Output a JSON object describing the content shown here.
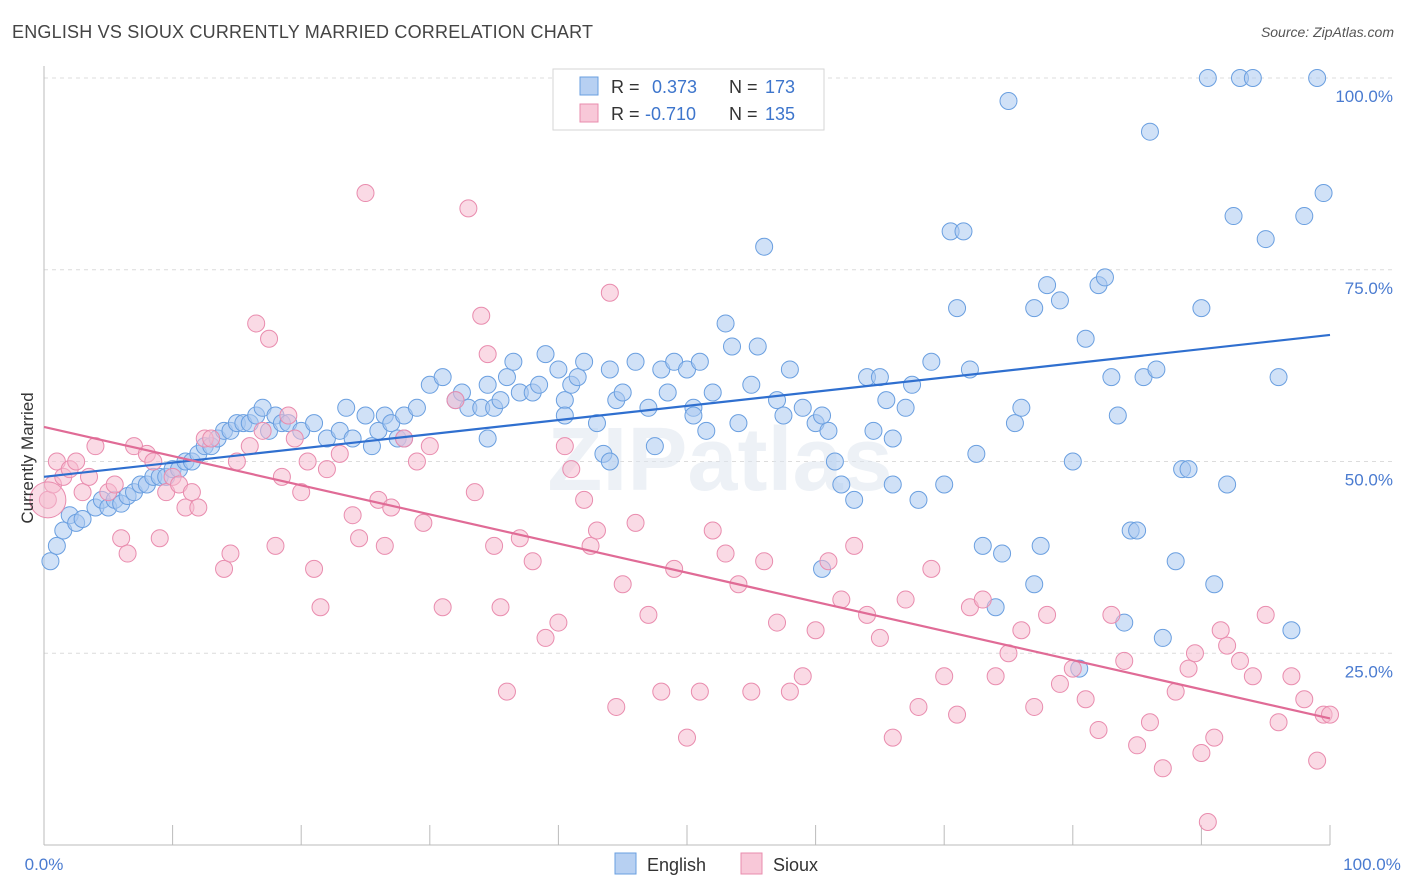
{
  "title": "ENGLISH VS SIOUX CURRENTLY MARRIED CORRELATION CHART",
  "source": "Source: ZipAtlas.com",
  "watermark": "ZIPatlas",
  "chart_data": {
    "type": "scatter",
    "xlabel": "",
    "ylabel": "Currently Married",
    "xlim": [
      0,
      100
    ],
    "ylim": [
      0,
      100
    ],
    "x_tick_labels": [
      "0.0%",
      "100.0%"
    ],
    "y_tick_labels": [
      "25.0%",
      "50.0%",
      "75.0%",
      "100.0%"
    ],
    "y_ticks": [
      25,
      50,
      75,
      100
    ],
    "grid": true,
    "legend_position": "top-center",
    "series": [
      {
        "name": "English",
        "color": "#6a9fe0",
        "fill": "#a9c8f0",
        "line_color": "#2f6fcf",
        "R": "0.373",
        "N": "173",
        "trend": {
          "x0": 0,
          "y0": 48.0,
          "x1": 100,
          "y1": 66.5
        },
        "points": [
          [
            0.5,
            37
          ],
          [
            1,
            39
          ],
          [
            1.5,
            41
          ],
          [
            2,
            43
          ],
          [
            2.5,
            42
          ],
          [
            3,
            42.5
          ],
          [
            4,
            44
          ],
          [
            4.5,
            45
          ],
          [
            5,
            44
          ],
          [
            5.5,
            45
          ],
          [
            6,
            44.5
          ],
          [
            6.5,
            45.5
          ],
          [
            7,
            46
          ],
          [
            7.5,
            47
          ],
          [
            8,
            47
          ],
          [
            8.5,
            48
          ],
          [
            9,
            48
          ],
          [
            9.5,
            48
          ],
          [
            10,
            49
          ],
          [
            10.5,
            49
          ],
          [
            11,
            50
          ],
          [
            11.5,
            50
          ],
          [
            12,
            51
          ],
          [
            12.5,
            52
          ],
          [
            13,
            52
          ],
          [
            13.5,
            53
          ],
          [
            14,
            54
          ],
          [
            14.5,
            54
          ],
          [
            15,
            55
          ],
          [
            15.5,
            55
          ],
          [
            16,
            55
          ],
          [
            16.5,
            56
          ],
          [
            17,
            57
          ],
          [
            17.5,
            54
          ],
          [
            18,
            56
          ],
          [
            18.5,
            55
          ],
          [
            19,
            55
          ],
          [
            20,
            54
          ],
          [
            21,
            55
          ],
          [
            22,
            53
          ],
          [
            23,
            54
          ],
          [
            23.5,
            57
          ],
          [
            24,
            53
          ],
          [
            25,
            56
          ],
          [
            25.5,
            52
          ],
          [
            26,
            54
          ],
          [
            26.5,
            56
          ],
          [
            27,
            55
          ],
          [
            27.5,
            53
          ],
          [
            28,
            56
          ],
          [
            29,
            57
          ],
          [
            30,
            60
          ],
          [
            31,
            61
          ],
          [
            32,
            58
          ],
          [
            32.5,
            59
          ],
          [
            33,
            57
          ],
          [
            34,
            57
          ],
          [
            34.5,
            60
          ],
          [
            35,
            57
          ],
          [
            35.5,
            58
          ],
          [
            36,
            61
          ],
          [
            36.5,
            63
          ],
          [
            37,
            59
          ],
          [
            38,
            59
          ],
          [
            38.5,
            60
          ],
          [
            39,
            64
          ],
          [
            40,
            62
          ],
          [
            40.5,
            58
          ],
          [
            41,
            60
          ],
          [
            41.5,
            61
          ],
          [
            42,
            63
          ],
          [
            43,
            55
          ],
          [
            43.5,
            51
          ],
          [
            44,
            62
          ],
          [
            44.5,
            58
          ],
          [
            45,
            59
          ],
          [
            46,
            63
          ],
          [
            47,
            57
          ],
          [
            47.5,
            52
          ],
          [
            48,
            62
          ],
          [
            48.5,
            59
          ],
          [
            49,
            63
          ],
          [
            50,
            62
          ],
          [
            50.5,
            57
          ],
          [
            51,
            63
          ],
          [
            51.5,
            54
          ],
          [
            52,
            59
          ],
          [
            53,
            68
          ],
          [
            53.5,
            65
          ],
          [
            54,
            55
          ],
          [
            55,
            60
          ],
          [
            55.5,
            65
          ],
          [
            56,
            78
          ],
          [
            57,
            58
          ],
          [
            57.5,
            56
          ],
          [
            58,
            62
          ],
          [
            59,
            57
          ],
          [
            60,
            55
          ],
          [
            60.5,
            56
          ],
          [
            61,
            54
          ],
          [
            61.5,
            50
          ],
          [
            62,
            47
          ],
          [
            63,
            45
          ],
          [
            64,
            61
          ],
          [
            64.5,
            54
          ],
          [
            65,
            61
          ],
          [
            65.5,
            58
          ],
          [
            66,
            47
          ],
          [
            67,
            57
          ],
          [
            67.5,
            60
          ],
          [
            68,
            45
          ],
          [
            69,
            63
          ],
          [
            70,
            47
          ],
          [
            70.5,
            80
          ],
          [
            71,
            70
          ],
          [
            71.5,
            80
          ],
          [
            72,
            62
          ],
          [
            73,
            39
          ],
          [
            74,
            31
          ],
          [
            74.5,
            38
          ],
          [
            75,
            97
          ],
          [
            75.5,
            55
          ],
          [
            76,
            57
          ],
          [
            77,
            70
          ],
          [
            77.5,
            39
          ],
          [
            78,
            73
          ],
          [
            79,
            71
          ],
          [
            80,
            50
          ],
          [
            80.5,
            23
          ],
          [
            81,
            66
          ],
          [
            82,
            73
          ],
          [
            82.5,
            74
          ],
          [
            83,
            61
          ],
          [
            83.5,
            56
          ],
          [
            84,
            29
          ],
          [
            84.5,
            41
          ],
          [
            85,
            41
          ],
          [
            85.5,
            61
          ],
          [
            86,
            93
          ],
          [
            86.5,
            62
          ],
          [
            87,
            27
          ],
          [
            88,
            37
          ],
          [
            88.5,
            49
          ],
          [
            89,
            49
          ],
          [
            90,
            70
          ],
          [
            90.5,
            100
          ],
          [
            91,
            34
          ],
          [
            92,
            47
          ],
          [
            92.5,
            82
          ],
          [
            93,
            100
          ],
          [
            94,
            100
          ],
          [
            95,
            79
          ],
          [
            96,
            61
          ],
          [
            97,
            28
          ],
          [
            98,
            82
          ],
          [
            99,
            100
          ],
          [
            99.5,
            85
          ],
          [
            28,
            53
          ],
          [
            44,
            50
          ],
          [
            50.5,
            56
          ],
          [
            34.5,
            53
          ],
          [
            40.5,
            56
          ],
          [
            60.5,
            36
          ],
          [
            66,
            53
          ],
          [
            72.5,
            51
          ],
          [
            77,
            34
          ]
        ]
      },
      {
        "name": "Sioux",
        "color": "#e98cae",
        "fill": "#f5bcd0",
        "line_color": "#e06b96",
        "R": "-0.710",
        "N": "135",
        "trend": {
          "x0": 0,
          "y0": 54.5,
          "x1": 100,
          "y1": 16.5
        },
        "points": [
          [
            0.3,
            45
          ],
          [
            0.7,
            47
          ],
          [
            1,
            50
          ],
          [
            1.5,
            48
          ],
          [
            2,
            49
          ],
          [
            2.5,
            50
          ],
          [
            3,
            46
          ],
          [
            3.5,
            48
          ],
          [
            4,
            52
          ],
          [
            5,
            46
          ],
          [
            5.5,
            47
          ],
          [
            6,
            40
          ],
          [
            6.5,
            38
          ],
          [
            7,
            52
          ],
          [
            8,
            51
          ],
          [
            8.5,
            50
          ],
          [
            9,
            40
          ],
          [
            9.5,
            46
          ],
          [
            10,
            48
          ],
          [
            10.5,
            47
          ],
          [
            11,
            44
          ],
          [
            11.5,
            46
          ],
          [
            12,
            44
          ],
          [
            12.5,
            53
          ],
          [
            13,
            53
          ],
          [
            14,
            36
          ],
          [
            14.5,
            38
          ],
          [
            15,
            50
          ],
          [
            16,
            52
          ],
          [
            16.5,
            68
          ],
          [
            17,
            54
          ],
          [
            17.5,
            66
          ],
          [
            18,
            39
          ],
          [
            18.5,
            48
          ],
          [
            19,
            56
          ],
          [
            19.5,
            53
          ],
          [
            20,
            46
          ],
          [
            20.5,
            50
          ],
          [
            21,
            36
          ],
          [
            21.5,
            31
          ],
          [
            22,
            49
          ],
          [
            23,
            51
          ],
          [
            24,
            43
          ],
          [
            24.5,
            40
          ],
          [
            25,
            85
          ],
          [
            26,
            45
          ],
          [
            26.5,
            39
          ],
          [
            27,
            44
          ],
          [
            28,
            53
          ],
          [
            29,
            50
          ],
          [
            29.5,
            42
          ],
          [
            30,
            52
          ],
          [
            31,
            31
          ],
          [
            32,
            58
          ],
          [
            33,
            83
          ],
          [
            33.5,
            46
          ],
          [
            34,
            69
          ],
          [
            34.5,
            64
          ],
          [
            35,
            39
          ],
          [
            35.5,
            31
          ],
          [
            36,
            20
          ],
          [
            37,
            40
          ],
          [
            38,
            37
          ],
          [
            39,
            27
          ],
          [
            40,
            29
          ],
          [
            40.5,
            52
          ],
          [
            41,
            49
          ],
          [
            42,
            45
          ],
          [
            42.5,
            39
          ],
          [
            43,
            41
          ],
          [
            44,
            72
          ],
          [
            44.5,
            18
          ],
          [
            45,
            34
          ],
          [
            46,
            42
          ],
          [
            47,
            30
          ],
          [
            48,
            20
          ],
          [
            49,
            36
          ],
          [
            50,
            14
          ],
          [
            51,
            20
          ],
          [
            52,
            41
          ],
          [
            53,
            38
          ],
          [
            54,
            34
          ],
          [
            55,
            20
          ],
          [
            56,
            37
          ],
          [
            57,
            29
          ],
          [
            58,
            20
          ],
          [
            59,
            22
          ],
          [
            60,
            28
          ],
          [
            61,
            37
          ],
          [
            62,
            32
          ],
          [
            63,
            39
          ],
          [
            64,
            30
          ],
          [
            65,
            27
          ],
          [
            66,
            14
          ],
          [
            67,
            32
          ],
          [
            68,
            18
          ],
          [
            69,
            36
          ],
          [
            70,
            22
          ],
          [
            71,
            17
          ],
          [
            72,
            31
          ],
          [
            73,
            32
          ],
          [
            74,
            22
          ],
          [
            75,
            25
          ],
          [
            76,
            28
          ],
          [
            77,
            18
          ],
          [
            78,
            30
          ],
          [
            79,
            21
          ],
          [
            80,
            23
          ],
          [
            81,
            19
          ],
          [
            82,
            15
          ],
          [
            83,
            30
          ],
          [
            84,
            24
          ],
          [
            85,
            13
          ],
          [
            86,
            16
          ],
          [
            87,
            10
          ],
          [
            88,
            20
          ],
          [
            89,
            23
          ],
          [
            90,
            12
          ],
          [
            91,
            14
          ],
          [
            92,
            26
          ],
          [
            93,
            24
          ],
          [
            94,
            22
          ],
          [
            95,
            30
          ],
          [
            96,
            16
          ],
          [
            97,
            22
          ],
          [
            98,
            19
          ],
          [
            99,
            11
          ],
          [
            99.5,
            17
          ],
          [
            100,
            17
          ],
          [
            90.5,
            3
          ],
          [
            89.5,
            25
          ],
          [
            91.5,
            28
          ]
        ]
      }
    ]
  }
}
